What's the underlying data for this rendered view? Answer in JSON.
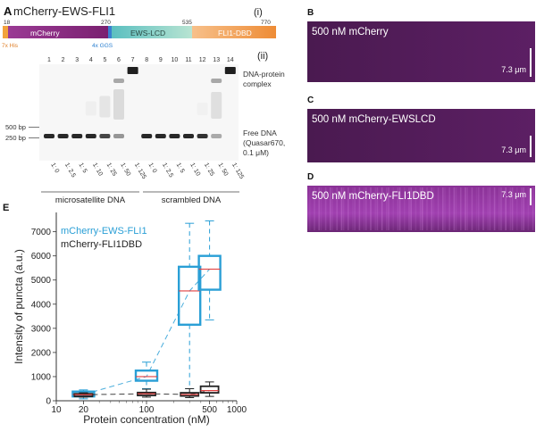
{
  "panel_a": {
    "letter": "A",
    "title": "mCherry-EWS-FLI1",
    "sub_i": "(i)",
    "sub_ii": "(ii)",
    "construct": {
      "positions": [
        "18",
        "270",
        "535",
        "770"
      ],
      "domains": [
        "mCherry",
        "EWS-LCD",
        "FLI1-DBD"
      ],
      "his_tag": "7x His",
      "ggs_linker": "4x GGS",
      "colors": {
        "his": "#f2a23c",
        "mcherry": "#8a2a80",
        "ews": "#7ec8b4",
        "fli1": "#f0a050"
      }
    },
    "gel": {
      "lane_numbers": [
        "1",
        "2",
        "3",
        "4",
        "5",
        "6",
        "7",
        "8",
        "9",
        "10",
        "11",
        "12",
        "13",
        "14"
      ],
      "ratios": [
        "1: 0",
        "1: 2.5",
        "1: 5",
        "1: 10",
        "1: 25",
        "1: 50",
        "1: 125",
        "1: 0",
        "1: 2.5",
        "1: 5",
        "1: 10",
        "1: 25",
        "1: 50",
        "1: 125"
      ],
      "markers": [
        "500 bp",
        "250 bp"
      ],
      "complex_label_1": "DNA-protein",
      "complex_label_2": "complex",
      "free_label_1": "Free DNA",
      "free_label_2": "(Quasar670,",
      "free_label_3": "0.1 μM)",
      "group_1": "microsatellite DNA",
      "group_2": "scrambled DNA"
    }
  },
  "micrographs": [
    {
      "letter": "B",
      "label": "500 nM mCherry",
      "scale": "7.3 μm"
    },
    {
      "letter": "C",
      "label": "500 nM mCherry-EWSLCD",
      "scale": "7.3 μm"
    },
    {
      "letter": "D",
      "label": "500 nM mCherry-FLI1DBD",
      "scale": "7.3 μm"
    }
  ],
  "panel_e": {
    "letter": "E",
    "chart_data": {
      "type": "boxplot",
      "xlabel": "Protein concentration (nM)",
      "ylabel": "Intensity of puncta (a.u.)",
      "xscale": "log",
      "xlim": [
        10,
        1000
      ],
      "ylim": [
        0,
        7800
      ],
      "xticks": [
        10,
        20,
        100,
        500,
        1000
      ],
      "xtick_labels": [
        "10",
        "20",
        "100",
        "500",
        "1000"
      ],
      "yticks": [
        0,
        1000,
        2000,
        3000,
        4000,
        5000,
        6000,
        7000
      ],
      "ytick_labels": [
        "0",
        "1000",
        "2000",
        "3000",
        "4000",
        "5000",
        "6000",
        "7000"
      ],
      "legend": [
        "mCherry-EWS-FLI1",
        "mCherry-FLI1DBD"
      ],
      "series": [
        {
          "name": "mCherry-EWS-FLI1",
          "color": "#2a9fd6",
          "boxes": [
            {
              "x": 20,
              "min": 80,
              "q1": 180,
              "median": 260,
              "q3": 380,
              "max": 450
            },
            {
              "x": 100,
              "min": 500,
              "q1": 830,
              "median": 1000,
              "q3": 1250,
              "max": 1600
            },
            {
              "x": 300,
              "min": 500,
              "q1": 3150,
              "median": 4550,
              "q3": 5550,
              "max": 7350
            },
            {
              "x": 500,
              "min": 3350,
              "q1": 4600,
              "median": 5450,
              "q3": 6000,
              "max": 7450
            }
          ]
        },
        {
          "name": "mCherry-FLI1DBD",
          "color": "#222222",
          "boxes": [
            {
              "x": 20,
              "min": 150,
              "q1": 210,
              "median": 250,
              "q3": 290,
              "max": 330
            },
            {
              "x": 100,
              "min": 150,
              "q1": 220,
              "median": 290,
              "q3": 340,
              "max": 480
            },
            {
              "x": 300,
              "min": 130,
              "q1": 200,
              "median": 260,
              "q3": 330,
              "max": 500
            },
            {
              "x": 500,
              "min": 180,
              "q1": 330,
              "median": 420,
              "q3": 600,
              "max": 780
            }
          ]
        }
      ]
    }
  }
}
